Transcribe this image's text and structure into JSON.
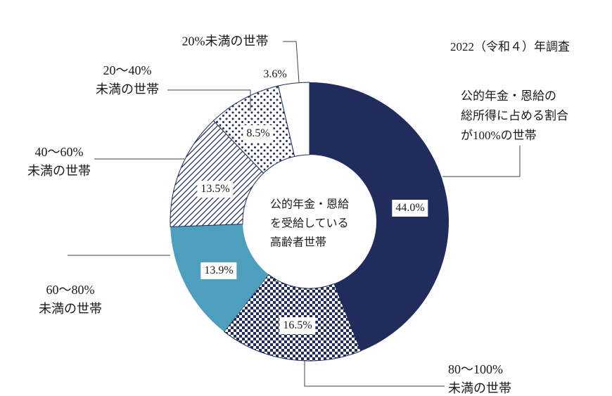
{
  "survey_note": "2022（令和４）年調査",
  "chart_data": {
    "type": "pie",
    "subtype": "donut",
    "direction": "clockwise",
    "start_angle_deg": 0,
    "inner_radius_ratio": 0.48,
    "legend_position": "callout-labels",
    "center_label": "公的年金・恩給\nを受給している\n高齢者世帯",
    "slices": [
      {
        "label": "公的年金・恩給の総所得に占める割合が100%の世帯",
        "value": 44.0,
        "display_value": "44.0%",
        "fill": "navy"
      },
      {
        "label": "80〜100%未満の世帯",
        "value": 16.5,
        "display_value": "16.5%",
        "fill": "checker"
      },
      {
        "label": "60〜80%未満の世帯",
        "value": 13.9,
        "display_value": "13.9%",
        "fill": "teal"
      },
      {
        "label": "40〜60%未満の世帯",
        "value": 13.5,
        "display_value": "13.5%",
        "fill": "hatch"
      },
      {
        "label": "20〜40%未満の世帯",
        "value": 8.5,
        "display_value": "8.5%",
        "fill": "dots"
      },
      {
        "label": "20%未満の世帯",
        "value": 3.6,
        "display_value": "3.6%",
        "fill": "white"
      }
    ],
    "colors": {
      "navy": "#1f2c5c",
      "teal": "#4e9fbd",
      "white": "#ffffff"
    }
  },
  "callouts": {
    "under20": "20%未満の世帯",
    "range20_40": "20〜40%\n未満の世帯",
    "range40_60": "40〜60%\n未満の世帯",
    "range60_80": "60〜80%\n未満の世帯",
    "range80_100": "80〜100%\n未満の世帯",
    "full100": "公的年金・恩給の\n総所得に占める割合\nが100%の世帯"
  }
}
